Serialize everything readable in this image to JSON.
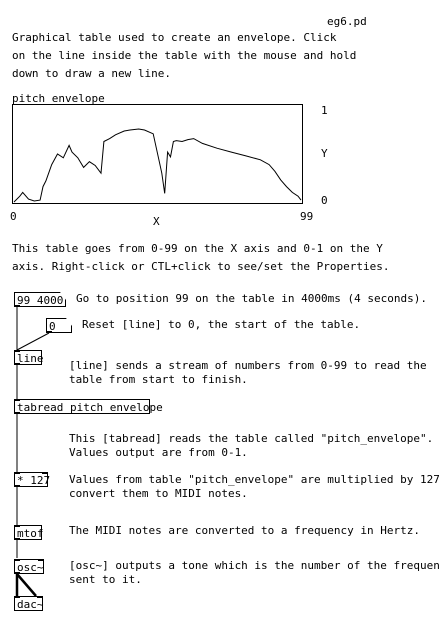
{
  "window": {
    "filename": "eg6.pd"
  },
  "intro": {
    "line1": "Graphical table used to create an envelope. Click",
    "line2": "on the line inside the table with the mouse and hold",
    "line3": "down to draw a new line."
  },
  "table": {
    "name": "pitch_envelope",
    "y_top": "1",
    "y_label": "Y",
    "y_bottom": "0",
    "x_left": "0",
    "x_label": "X",
    "x_right": "99"
  },
  "chart_data": {
    "type": "line",
    "x": [
      0,
      2,
      3,
      5,
      7,
      9,
      10,
      11,
      13,
      15,
      17,
      19,
      20,
      22,
      24,
      26,
      28,
      30,
      31,
      33,
      35,
      38,
      40,
      43,
      45,
      48,
      50,
      51,
      52,
      53,
      54,
      55,
      56,
      58,
      60,
      62,
      65,
      70,
      75,
      80,
      85,
      88,
      90,
      92,
      94,
      96,
      98,
      99
    ],
    "values": [
      0.0,
      0.06,
      0.1,
      0.03,
      0.01,
      0.02,
      0.16,
      0.22,
      0.39,
      0.5,
      0.46,
      0.59,
      0.52,
      0.46,
      0.36,
      0.42,
      0.38,
      0.3,
      0.63,
      0.66,
      0.7,
      0.74,
      0.75,
      0.76,
      0.75,
      0.71,
      0.44,
      0.3,
      0.09,
      0.52,
      0.47,
      0.63,
      0.64,
      0.63,
      0.65,
      0.66,
      0.61,
      0.56,
      0.52,
      0.48,
      0.44,
      0.39,
      0.32,
      0.23,
      0.16,
      0.1,
      0.06,
      0.02
    ],
    "xlim": [
      0,
      99
    ],
    "ylim": [
      0,
      1
    ]
  },
  "table_note": {
    "line1": "This table goes from 0-99 on the X axis and 0-1 on the Y",
    "line2": "axis. Right-click or CTL+click to see/set the Properties."
  },
  "objects": {
    "msg_99": "99 4000",
    "msg_0": "0",
    "line": "line",
    "tabread": "tabread pitch_envelope",
    "mul": "* 127",
    "mtof": "mtof",
    "osc": "osc~",
    "dac": "dac~"
  },
  "comments": {
    "msg_99": "Go to position 99 on the table in 4000ms (4 seconds).",
    "msg_0": "Reset [line] to 0, the start of the table.",
    "line_1": "[line] sends a stream of numbers from 0-99 to read the",
    "line_2": "table from start to finish.",
    "tabread_1": "This [tabread] reads the table called \"pitch_envelope\".",
    "tabread_2": "Values output are from 0-1.",
    "mul_1": "Values from table \"pitch_envelope\" are multiplied by 127 to",
    "mul_2": "convert them to MIDI notes.",
    "mtof": "The MIDI notes are converted to a frequency in Hertz.",
    "osc_1": "[osc~] outputs a tone which is the number of the frequency",
    "osc_2": "sent to it."
  }
}
